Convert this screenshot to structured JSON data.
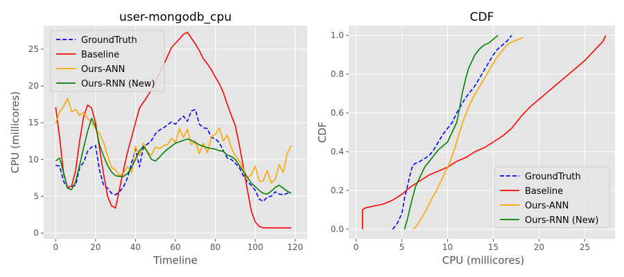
{
  "chart_data": [
    {
      "type": "line",
      "title": "user-mongodb_cpu",
      "xlabel": "Timeline",
      "ylabel": "CPU (millicores)",
      "xlim": [
        -6,
        126
      ],
      "ylim": [
        -0.8,
        28.2
      ],
      "xticks": [
        0,
        20,
        40,
        60,
        80,
        100,
        120
      ],
      "yticks": [
        0,
        5,
        10,
        15,
        20,
        25
      ],
      "grid": true,
      "legend_position": "upper-left",
      "series": [
        {
          "name": "GroundTruth",
          "color": "#0000ff",
          "style": "dashed",
          "x": [
            0,
            2,
            4,
            6,
            8,
            10,
            12,
            14,
            16,
            18,
            20,
            22,
            24,
            26,
            28,
            30,
            32,
            34,
            36,
            38,
            40,
            42,
            44,
            46,
            48,
            50,
            52,
            54,
            56,
            58,
            60,
            62,
            64,
            66,
            68,
            70,
            72,
            74,
            76,
            78,
            80,
            82,
            84,
            86,
            88,
            90,
            92,
            94,
            96,
            98,
            100,
            102,
            104,
            106,
            108,
            110,
            112,
            114,
            116,
            118
          ],
          "y": [
            9.2,
            9.1,
            7.0,
            6.2,
            6.3,
            6.5,
            8.9,
            9.6,
            11.1,
            11.7,
            11.9,
            8.5,
            6.5,
            6.1,
            5.4,
            5.2,
            5.6,
            6.3,
            7.5,
            9.5,
            11.4,
            9.0,
            11.7,
            12.1,
            12.6,
            13.5,
            14.0,
            14.3,
            14.7,
            15.1,
            14.8,
            15.4,
            15.9,
            15.2,
            16.6,
            16.8,
            14.8,
            14.3,
            14.2,
            13.0,
            12.8,
            12.3,
            11.2,
            10.2,
            10.0,
            9.5,
            8.9,
            7.8,
            7.0,
            6.5,
            5.8,
            4.6,
            4.3,
            4.9,
            5.0,
            5.6,
            5.3,
            5.2,
            5.4,
            5.5
          ]
        },
        {
          "name": "Baseline",
          "color": "#ff0000",
          "style": "solid",
          "x": [
            0,
            2,
            4,
            6,
            8,
            10,
            12,
            14,
            16,
            18,
            20,
            22,
            24,
            26,
            28,
            30,
            32,
            34,
            36,
            38,
            40,
            42,
            44,
            46,
            48,
            50,
            52,
            54,
            56,
            58,
            60,
            62,
            64,
            66,
            68,
            70,
            72,
            74,
            76,
            78,
            80,
            82,
            84,
            86,
            88,
            90,
            92,
            94,
            96,
            98,
            100,
            102,
            104,
            106,
            108,
            110,
            112,
            114,
            116,
            118
          ],
          "y": [
            17.1,
            13.0,
            8.0,
            6.2,
            6.4,
            8.5,
            12.5,
            15.8,
            17.4,
            17.0,
            15.0,
            11.5,
            8.0,
            5.0,
            3.7,
            3.4,
            6.0,
            8.6,
            11.0,
            13.0,
            15.0,
            17.0,
            17.8,
            18.6,
            19.5,
            20.6,
            21.7,
            22.8,
            24.0,
            25.2,
            25.8,
            26.4,
            27.0,
            27.3,
            26.5,
            25.7,
            24.8,
            23.7,
            23.0,
            22.2,
            21.2,
            20.3,
            19.1,
            17.5,
            16.0,
            14.6,
            12.0,
            9.0,
            6.0,
            3.0,
            1.5,
            0.9,
            0.7,
            0.7,
            0.7,
            0.7,
            0.7,
            0.7,
            0.7,
            0.7
          ]
        },
        {
          "name": "Ours-ANN",
          "color": "#ffa500",
          "style": "solid",
          "x": [
            0,
            2,
            4,
            6,
            8,
            10,
            12,
            14,
            16,
            18,
            20,
            22,
            24,
            26,
            28,
            30,
            32,
            34,
            36,
            38,
            40,
            42,
            44,
            46,
            48,
            50,
            52,
            54,
            56,
            58,
            60,
            62,
            64,
            66,
            68,
            70,
            72,
            74,
            76,
            78,
            80,
            82,
            84,
            86,
            88,
            90,
            92,
            94,
            96,
            98,
            100,
            102,
            104,
            106,
            108,
            110,
            112,
            114,
            116,
            118
          ],
          "y": [
            14.9,
            16.5,
            17.2,
            18.3,
            16.5,
            16.8,
            16.0,
            16.4,
            15.6,
            15.0,
            14.2,
            13.5,
            12.3,
            10.5,
            8.9,
            8.6,
            7.8,
            8.2,
            9.0,
            8.2,
            11.8,
            10.5,
            12.2,
            11.0,
            10.6,
            11.7,
            11.5,
            11.9,
            12.0,
            12.9,
            12.3,
            14.2,
            13.0,
            14.1,
            12.0,
            12.5,
            10.8,
            12.2,
            10.9,
            13.1,
            13.4,
            14.3,
            12.5,
            13.3,
            11.6,
            10.5,
            9.8,
            8.7,
            7.5,
            7.9,
            9.1,
            7.0,
            7.1,
            8.5,
            6.8,
            7.3,
            9.3,
            8.2,
            10.8,
            11.9
          ]
        },
        {
          "name": "Ours-RNN (New)",
          "color": "#008000",
          "style": "solid",
          "x": [
            0,
            2,
            4,
            6,
            8,
            10,
            12,
            14,
            16,
            18,
            20,
            22,
            24,
            26,
            28,
            30,
            32,
            34,
            36,
            38,
            40,
            42,
            44,
            46,
            48,
            50,
            52,
            54,
            56,
            58,
            60,
            62,
            64,
            66,
            68,
            70,
            72,
            74,
            76,
            78,
            80,
            82,
            84,
            86,
            88,
            90,
            92,
            94,
            96,
            98,
            100,
            102,
            104,
            106,
            108,
            110,
            112,
            114,
            116,
            118
          ],
          "y": [
            9.8,
            10.2,
            8.2,
            6.1,
            5.9,
            7.0,
            9.2,
            11.6,
            13.8,
            15.6,
            14.5,
            12.0,
            10.5,
            9.2,
            8.3,
            7.8,
            7.7,
            7.7,
            8.1,
            8.9,
            10.0,
            11.2,
            11.8,
            11.0,
            10.0,
            9.8,
            10.3,
            10.9,
            11.4,
            11.8,
            12.2,
            12.4,
            12.6,
            12.8,
            12.6,
            12.3,
            12.0,
            11.8,
            11.6,
            11.5,
            11.4,
            11.2,
            11.1,
            10.6,
            10.4,
            10.0,
            9.2,
            8.4,
            7.6,
            6.8,
            6.3,
            5.8,
            5.4,
            5.3,
            5.7,
            6.2,
            6.5,
            6.1,
            5.7,
            5.4
          ]
        }
      ],
      "legend": [
        "GroundTruth",
        "Baseline",
        "Ours-ANN",
        "Ours-RNN (New)"
      ]
    },
    {
      "type": "line",
      "title": "CDF",
      "xlabel": "CPU (millicores)",
      "ylabel": "CDF",
      "xlim": [
        -0.8,
        28.3
      ],
      "ylim": [
        -0.05,
        1.05
      ],
      "xticks": [
        0,
        5,
        10,
        15,
        20,
        25
      ],
      "yticks": [
        0.0,
        0.2,
        0.4,
        0.6,
        0.8,
        1.0
      ],
      "ytick_labels": [
        "0.0",
        "0.2",
        "0.4",
        "0.6",
        "0.8",
        "1.0"
      ],
      "grid": true,
      "legend_position": "lower-right",
      "series": [
        {
          "name": "GroundTruth",
          "color": "#0000ff",
          "style": "dashed",
          "x": [
            4.0,
            4.5,
            5.0,
            5.3,
            5.6,
            6.0,
            6.2,
            6.5,
            7.0,
            8.0,
            8.5,
            9.0,
            9.5,
            10.0,
            10.5,
            11.0,
            11.5,
            12.0,
            12.5,
            13.0,
            13.5,
            14.0,
            14.5,
            15.0,
            15.5,
            16.0,
            16.5,
            17.0
          ],
          "y": [
            0.0,
            0.03,
            0.08,
            0.16,
            0.22,
            0.3,
            0.33,
            0.34,
            0.35,
            0.38,
            0.41,
            0.45,
            0.49,
            0.52,
            0.55,
            0.6,
            0.64,
            0.68,
            0.71,
            0.74,
            0.78,
            0.82,
            0.86,
            0.9,
            0.93,
            0.95,
            0.97,
            1.0
          ]
        },
        {
          "name": "Baseline",
          "color": "#ff0000",
          "style": "solid",
          "x": [
            0.7,
            0.7,
            1.0,
            2.0,
            3.0,
            4.0,
            5.0,
            6.0,
            7.0,
            8.0,
            9.0,
            10.0,
            11.0,
            12.0,
            13.0,
            14.0,
            15.0,
            16.0,
            17.0,
            18.0,
            19.0,
            20.0,
            21.0,
            22.0,
            23.0,
            24.0,
            25.0,
            26.0,
            27.0,
            27.3
          ],
          "y": [
            0.0,
            0.1,
            0.11,
            0.12,
            0.13,
            0.15,
            0.18,
            0.22,
            0.25,
            0.28,
            0.3,
            0.32,
            0.35,
            0.37,
            0.4,
            0.42,
            0.45,
            0.48,
            0.52,
            0.58,
            0.63,
            0.67,
            0.71,
            0.75,
            0.79,
            0.83,
            0.87,
            0.92,
            0.97,
            1.0
          ]
        },
        {
          "name": "Ours-ANN",
          "color": "#ffa500",
          "style": "solid",
          "x": [
            6.3,
            6.8,
            7.3,
            7.8,
            8.3,
            8.8,
            9.3,
            9.8,
            10.3,
            10.8,
            11.3,
            11.8,
            12.3,
            12.8,
            13.3,
            13.8,
            14.3,
            14.8,
            15.3,
            15.8,
            16.3,
            16.8,
            17.3,
            17.8,
            18.3
          ],
          "y": [
            0.0,
            0.03,
            0.07,
            0.11,
            0.16,
            0.2,
            0.25,
            0.3,
            0.35,
            0.42,
            0.5,
            0.57,
            0.63,
            0.68,
            0.72,
            0.76,
            0.8,
            0.84,
            0.88,
            0.91,
            0.94,
            0.96,
            0.97,
            0.98,
            0.99
          ]
        },
        {
          "name": "Ours-RNN (New)",
          "color": "#008000",
          "style": "solid",
          "x": [
            5.3,
            5.6,
            6.0,
            6.5,
            7.0,
            7.5,
            8.0,
            8.5,
            9.0,
            9.5,
            10.0,
            10.5,
            11.0,
            11.3,
            11.6,
            12.0,
            12.3,
            12.6,
            13.0,
            13.5,
            14.0,
            14.5,
            15.0,
            15.5
          ],
          "y": [
            0.0,
            0.05,
            0.13,
            0.22,
            0.27,
            0.32,
            0.35,
            0.38,
            0.41,
            0.43,
            0.45,
            0.5,
            0.55,
            0.62,
            0.7,
            0.78,
            0.83,
            0.86,
            0.9,
            0.93,
            0.95,
            0.96,
            0.98,
            1.0
          ]
        }
      ],
      "legend": [
        "GroundTruth",
        "Baseline",
        "Ours-ANN",
        "Ours-RNN (New)"
      ]
    }
  ]
}
